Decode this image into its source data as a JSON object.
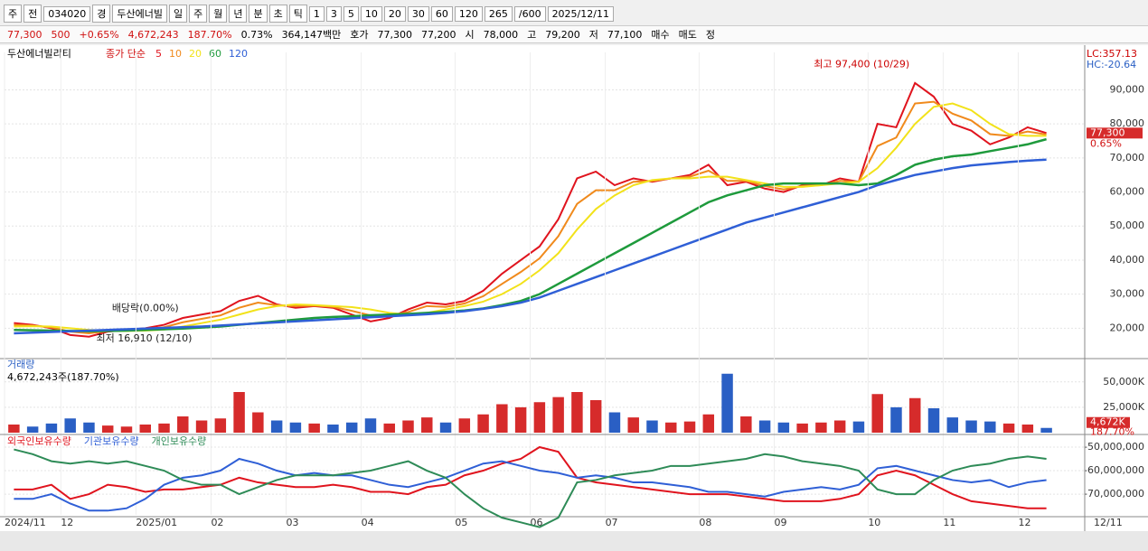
{
  "toolbar": {
    "items": [
      "주",
      "전",
      "034020",
      "경",
      "두산에너빌",
      "일",
      "주",
      "월",
      "년",
      "분",
      "초",
      "틱",
      "1",
      "3",
      "5",
      "10",
      "20",
      "30",
      "60",
      "120",
      "265",
      "/600",
      "2025/12/11"
    ]
  },
  "info_bar": {
    "items": [
      "77,300",
      "500",
      "+0.65%",
      "4,672,243",
      "187.70%",
      "0.73%",
      "364,147백만",
      "호가",
      "77,300",
      "77,200",
      "시",
      "78,000",
      "고",
      "79,200",
      "저",
      "77,100",
      "매수",
      "매도",
      "정"
    ]
  },
  "chart_data": [
    {
      "type": "line",
      "title": "두산에너빌리티",
      "subtitle": "종가 단순",
      "categories": [
        "2024/11",
        null,
        null,
        "12",
        null,
        null,
        null,
        "2025/01",
        null,
        null,
        null,
        "02",
        null,
        null,
        null,
        "03",
        null,
        null,
        null,
        "04",
        null,
        null,
        null,
        null,
        "05",
        null,
        null,
        null,
        "06",
        null,
        null,
        null,
        "07",
        null,
        null,
        null,
        null,
        "08",
        null,
        null,
        null,
        "09",
        null,
        null,
        null,
        null,
        "10",
        null,
        null,
        null,
        "11",
        null,
        null,
        null,
        "12",
        null
      ],
      "end_label": "12/11",
      "series": [
        {
          "name": "5",
          "color": "#e0141e",
          "values": [
            21500,
            21000,
            20000,
            18000,
            17500,
            19000,
            19500,
            20000,
            21000,
            23000,
            24000,
            25000,
            28000,
            29500,
            27000,
            26000,
            26500,
            26000,
            24000,
            22000,
            23000,
            25500,
            27500,
            27000,
            28000,
            31000,
            36000,
            40000,
            44000,
            52000,
            64000,
            66000,
            62000,
            64000,
            63000,
            64000,
            65000,
            68000,
            62000,
            63000,
            61000,
            60000,
            62000,
            62000,
            64000,
            63000,
            80000,
            79000,
            92000,
            88000,
            80000,
            78000,
            74000,
            76000,
            79000,
            77300
          ]
        },
        {
          "name": "10",
          "color": "#f08a1c",
          "values": [
            21000,
            20800,
            20250,
            19000,
            18500,
            19150,
            19350,
            19650,
            20300,
            21750,
            22750,
            23750,
            26000,
            27500,
            26750,
            26500,
            26650,
            26250,
            25100,
            23750,
            23750,
            24750,
            26500,
            26250,
            27250,
            29400,
            33000,
            36500,
            40500,
            47000,
            56500,
            60500,
            60500,
            63000,
            63250,
            64000,
            64500,
            66250,
            63250,
            63250,
            61750,
            60750,
            61750,
            62000,
            63250,
            63000,
            73500,
            76000,
            86000,
            86500,
            83000,
            81000,
            77000,
            76500,
            77750,
            76900
          ]
        },
        {
          "name": "20",
          "color": "#f2e21a",
          "values": [
            20500,
            20600,
            20500,
            20000,
            19500,
            19300,
            19200,
            19300,
            19600,
            20500,
            21500,
            22500,
            24000,
            25500,
            26500,
            27000,
            26800,
            26500,
            26200,
            25500,
            24500,
            24000,
            24500,
            25500,
            26500,
            27800,
            30000,
            33000,
            37000,
            42000,
            49000,
            55000,
            59000,
            62000,
            63500,
            64000,
            64000,
            64500,
            64500,
            63500,
            62500,
            61500,
            61500,
            62000,
            62500,
            63000,
            67000,
            73000,
            80000,
            85000,
            86000,
            84000,
            80000,
            77000,
            76500,
            76500
          ]
        },
        {
          "name": "60",
          "color": "#1e9a3c",
          "values": [
            19500,
            19400,
            19300,
            19200,
            19100,
            19200,
            19300,
            19500,
            19700,
            19900,
            20200,
            20500,
            21000,
            21500,
            22000,
            22500,
            23000,
            23300,
            23500,
            23800,
            24000,
            24200,
            24500,
            24800,
            25200,
            25800,
            26800,
            28000,
            30000,
            33000,
            36000,
            39000,
            42000,
            45000,
            48000,
            51000,
            54000,
            57000,
            59000,
            60500,
            62000,
            62500,
            62500,
            62500,
            62500,
            62000,
            62500,
            65000,
            68000,
            69500,
            70500,
            71000,
            72000,
            73000,
            74000,
            75500
          ]
        },
        {
          "name": "120",
          "color": "#2f5fd6",
          "values": [
            18500,
            18700,
            18900,
            19100,
            19300,
            19500,
            19700,
            19900,
            20100,
            20300,
            20500,
            20800,
            21100,
            21400,
            21700,
            22000,
            22300,
            22600,
            22900,
            23200,
            23500,
            23800,
            24100,
            24500,
            25000,
            25700,
            26500,
            27500,
            29000,
            31000,
            33000,
            35000,
            37000,
            39000,
            41000,
            43000,
            45000,
            47000,
            49000,
            51000,
            52500,
            54000,
            55500,
            57000,
            58500,
            60000,
            62000,
            63500,
            65000,
            66000,
            67000,
            67800,
            68300,
            68800,
            69200,
            69500
          ]
        }
      ],
      "ylim": [
        11600,
        101000
      ],
      "yticks": [
        {
          "value": 20000,
          "label": "20,000"
        },
        {
          "value": 30000,
          "label": "30,000"
        },
        {
          "value": 40000,
          "label": "40,000"
        },
        {
          "value": 50000,
          "label": "50,000"
        },
        {
          "value": 60000,
          "label": "60,000"
        },
        {
          "value": 70000,
          "label": "70,000"
        },
        {
          "value": 80000,
          "label": "80,000"
        },
        {
          "value": 90000,
          "label": "90,000"
        }
      ],
      "grid": true,
      "annotations": [
        {
          "text": "최고 97,400 (10/29)",
          "index": 48,
          "value": 97400
        },
        {
          "text": "최저 16,910 (12/10)",
          "index": 4,
          "value": 16910
        },
        {
          "text": "배당락(0.00%)",
          "index": 7,
          "value": 20000
        }
      ],
      "last_price": {
        "value": 77300,
        "label": "77,300"
      },
      "change_label": "0.65%",
      "lc_label": "LC:357.13",
      "hc_label": "HC:-20.64"
    },
    {
      "type": "bar",
      "title": "거래량",
      "subtitle": "4,672,243주(187.70%)",
      "values": [
        8000,
        6000,
        9000,
        14000,
        10000,
        7000,
        6000,
        8000,
        9000,
        16000,
        12000,
        14000,
        40000,
        20000,
        12000,
        10000,
        9000,
        8000,
        10000,
        14000,
        9000,
        12000,
        15000,
        10000,
        14000,
        18000,
        28000,
        25000,
        30000,
        35000,
        40000,
        32000,
        20000,
        15000,
        12000,
        10000,
        11000,
        18000,
        58000,
        16000,
        12000,
        10000,
        9000,
        10000,
        12000,
        11000,
        38000,
        25000,
        34000,
        24000,
        15000,
        12000,
        11000,
        9000,
        8000,
        4672
      ],
      "up_color": "#d62b2b",
      "down_color": "#2a5fc4",
      "ylim": [
        0,
        72000
      ],
      "yticks": [
        {
          "value": 25000,
          "label": "25,000K"
        },
        {
          "value": 50000,
          "label": "50,000K"
        }
      ],
      "last_label": "4,672K",
      "ratio_label": "187.70%"
    },
    {
      "type": "line",
      "series": [
        {
          "name": "외국인보유수량",
          "color": "#e0141e",
          "values": [
            -68000000,
            -68000000,
            -66000000,
            -72000000,
            -70000000,
            -66000000,
            -67000000,
            -69000000,
            -68000000,
            -68000000,
            -67000000,
            -66000000,
            -63000000,
            -65000000,
            -66000000,
            -67000000,
            -67000000,
            -66000000,
            -67000000,
            -69000000,
            -69000000,
            -70000000,
            -67000000,
            -66000000,
            -62000000,
            -60000000,
            -57000000,
            -55000000,
            -50000000,
            -52000000,
            -63000000,
            -65000000,
            -66000000,
            -67000000,
            -68000000,
            -69000000,
            -70000000,
            -70000000,
            -70000000,
            -71000000,
            -72000000,
            -73000000,
            -73000000,
            -73000000,
            -72000000,
            -70000000,
            -62000000,
            -60000000,
            -62000000,
            -66000000,
            -70000000,
            -73000000,
            -74000000,
            -75000000,
            -76000000,
            -76000000
          ]
        },
        {
          "name": "기관보유수량",
          "color": "#2f5fd6",
          "values": [
            -72000000,
            -72000000,
            -70000000,
            -74000000,
            -77000000,
            -77000000,
            -76000000,
            -72000000,
            -66000000,
            -63000000,
            -62000000,
            -60000000,
            -55000000,
            -57000000,
            -60000000,
            -62000000,
            -61000000,
            -62000000,
            -62000000,
            -64000000,
            -66000000,
            -67000000,
            -65000000,
            -63000000,
            -60000000,
            -57000000,
            -56000000,
            -58000000,
            -60000000,
            -61000000,
            -63000000,
            -62000000,
            -63000000,
            -65000000,
            -65000000,
            -66000000,
            -67000000,
            -69000000,
            -69000000,
            -70000000,
            -71000000,
            -69000000,
            -68000000,
            -67000000,
            -68000000,
            -66000000,
            -59000000,
            -58000000,
            -60000000,
            -62000000,
            -64000000,
            -65000000,
            -64000000,
            -67000000,
            -65000000,
            -64000000
          ]
        },
        {
          "name": "개인보유수량",
          "color": "#2e8b57",
          "values": [
            -51000000,
            -53000000,
            -56000000,
            -57000000,
            -56000000,
            -57000000,
            -56000000,
            -58000000,
            -60000000,
            -64000000,
            -66000000,
            -66000000,
            -70000000,
            -67000000,
            -64000000,
            -62000000,
            -62000000,
            -62000000,
            -61000000,
            -60000000,
            -58000000,
            -56000000,
            -60000000,
            -63000000,
            -70000000,
            -76000000,
            -80000000,
            -82000000,
            -84000000,
            -80000000,
            -65000000,
            -64000000,
            -62000000,
            -61000000,
            -60000000,
            -58000000,
            -58000000,
            -57000000,
            -56000000,
            -55000000,
            -53000000,
            -54000000,
            -56000000,
            -57000000,
            -58000000,
            -60000000,
            -68000000,
            -70000000,
            -70000000,
            -64000000,
            -60000000,
            -58000000,
            -57000000,
            -55000000,
            -54000000,
            -55000000
          ]
        }
      ],
      "ylim": [
        -78800000,
        -45400000
      ],
      "yticks": [
        {
          "value": -70000000,
          "label": "-70,000,000"
        },
        {
          "value": -60000000,
          "label": "-60,000,000"
        },
        {
          "value": -50000000,
          "label": "-50,000,000"
        }
      ]
    }
  ]
}
